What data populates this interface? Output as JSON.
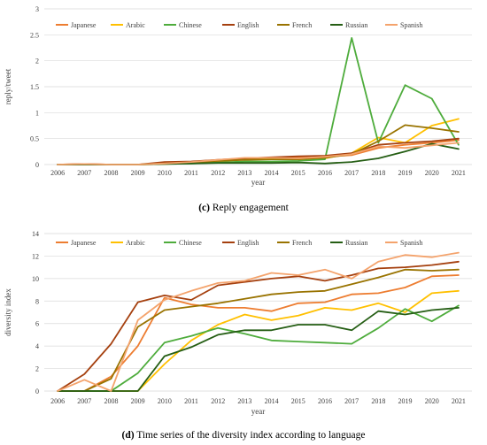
{
  "chart_data": [
    {
      "type": "line",
      "title": "",
      "xlabel": "year",
      "ylabel": "reply/tweet",
      "ylim": [
        0,
        3
      ],
      "yticks": [
        0,
        0.5,
        1,
        1.5,
        2,
        2.5,
        3
      ],
      "ytick_labels": [
        "0",
        "0.5",
        "1",
        "1.5",
        "2",
        "2.5",
        "3"
      ],
      "grid": true,
      "legend_placement": "top",
      "caption_label": "(c)",
      "caption_text": " Reply engagement",
      "x": [
        "2006",
        "2007",
        "2008",
        "2009",
        "2010",
        "2011",
        "2012",
        "2013",
        "2014",
        "2015",
        "2016",
        "2017",
        "2018",
        "2019",
        "2020",
        "2021"
      ],
      "series": [
        {
          "name": "Japanese",
          "color": "#ed7d31",
          "values": [
            0,
            0.01,
            0,
            0,
            0.01,
            0.03,
            0.06,
            0.1,
            0.12,
            0.14,
            0.15,
            0.18,
            0.32,
            0.38,
            0.42,
            0.47
          ]
        },
        {
          "name": "Arabic",
          "color": "#ffc000",
          "values": [
            0,
            0,
            0,
            0,
            0.02,
            0.05,
            0.08,
            0.1,
            0.11,
            0.1,
            0.12,
            0.22,
            0.52,
            0.42,
            0.75,
            0.88
          ]
        },
        {
          "name": "Chinese",
          "color": "#4eac3c",
          "values": [
            0,
            0,
            0,
            0,
            0.01,
            0.02,
            0.04,
            0.06,
            0.06,
            0.07,
            0.1,
            2.44,
            0.42,
            1.53,
            1.27,
            0.38
          ]
        },
        {
          "name": "English",
          "color": "#a5400f",
          "values": [
            0,
            0.01,
            0,
            0,
            0.05,
            0.06,
            0.09,
            0.12,
            0.14,
            0.16,
            0.17,
            0.22,
            0.38,
            0.42,
            0.45,
            0.5
          ]
        },
        {
          "name": "French",
          "color": "#997300",
          "values": [
            0,
            0,
            0,
            0,
            0.02,
            0.04,
            0.07,
            0.09,
            0.1,
            0.1,
            0.13,
            0.2,
            0.45,
            0.76,
            0.7,
            0.63
          ]
        },
        {
          "name": "Russian",
          "color": "#255e14",
          "values": [
            0,
            0,
            0,
            0,
            0.01,
            0.02,
            0.03,
            0.03,
            0.03,
            0.04,
            0.02,
            0.05,
            0.12,
            0.25,
            0.4,
            0.3
          ]
        },
        {
          "name": "Spanish",
          "color": "#f4a36c",
          "values": [
            0,
            0.01,
            0,
            0,
            0.02,
            0.05,
            0.09,
            0.13,
            0.13,
            0.12,
            0.15,
            0.2,
            0.35,
            0.32,
            0.37,
            0.42
          ]
        }
      ]
    },
    {
      "type": "line",
      "title": "",
      "xlabel": "year",
      "ylabel": "diversity index",
      "ylim": [
        0,
        14
      ],
      "yticks": [
        0,
        2,
        4,
        6,
        8,
        10,
        12,
        14
      ],
      "ytick_labels": [
        "0",
        "2",
        "4",
        "6",
        "8",
        "10",
        "12",
        "14"
      ],
      "grid": true,
      "legend_placement": "top",
      "caption_label": "(d)",
      "caption_text": " Time series of the diversity index according to language",
      "x": [
        "2006",
        "2007",
        "2008",
        "2009",
        "2010",
        "2011",
        "2012",
        "2013",
        "2014",
        "2015",
        "2016",
        "2017",
        "2018",
        "2019",
        "2020",
        "2021"
      ],
      "series": [
        {
          "name": "Japanese",
          "color": "#ed7d31",
          "values": [
            0,
            0,
            1.3,
            4.0,
            8.3,
            7.7,
            7.4,
            7.4,
            7.1,
            7.8,
            7.9,
            8.6,
            8.7,
            9.2,
            10.2,
            10.3
          ]
        },
        {
          "name": "Arabic",
          "color": "#ffc000",
          "values": [
            0,
            0,
            0,
            0,
            2.4,
            4.5,
            5.9,
            6.8,
            6.3,
            6.7,
            7.4,
            7.2,
            7.8,
            7.0,
            8.7,
            8.9
          ]
        },
        {
          "name": "Chinese",
          "color": "#4eac3c",
          "values": [
            0,
            0,
            0,
            1.6,
            4.3,
            4.9,
            5.6,
            5.1,
            4.5,
            4.4,
            4.3,
            4.2,
            5.6,
            7.3,
            6.2,
            7.6
          ]
        },
        {
          "name": "English",
          "color": "#a5400f",
          "values": [
            0,
            1.5,
            4.2,
            7.9,
            8.5,
            8.1,
            9.4,
            9.7,
            10.0,
            10.2,
            9.8,
            10.3,
            10.9,
            11.0,
            11.2,
            11.5
          ]
        },
        {
          "name": "French",
          "color": "#997300",
          "values": [
            0,
            0,
            1.1,
            5.7,
            7.2,
            7.5,
            7.8,
            8.2,
            8.6,
            8.8,
            8.9,
            9.5,
            10.1,
            10.8,
            10.7,
            10.8
          ]
        },
        {
          "name": "Russian",
          "color": "#255e14",
          "values": [
            0,
            0,
            0,
            0,
            3.1,
            3.9,
            5.0,
            5.4,
            5.4,
            5.9,
            5.9,
            5.4,
            7.1,
            6.8,
            7.2,
            7.4
          ]
        },
        {
          "name": "Spanish",
          "color": "#f4a36c",
          "values": [
            0,
            1.0,
            0,
            6.3,
            8.1,
            8.9,
            9.6,
            9.8,
            10.5,
            10.3,
            10.8,
            10.0,
            11.5,
            12.1,
            11.9,
            12.3
          ]
        }
      ]
    }
  ]
}
